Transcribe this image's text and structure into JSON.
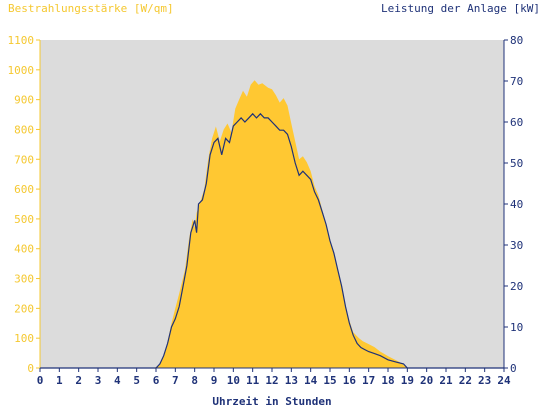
{
  "chart_data": {
    "type": "area",
    "title_left": "Bestrahlungsstärke [W/qm]",
    "title_right": "Leistung der Anlage [kW]",
    "xlabel": "Uhrzeit in Stunden",
    "x_ticks": [
      "0",
      "1",
      "2",
      "3",
      "4",
      "5",
      "6",
      "7",
      "8",
      "9",
      "10",
      "11",
      "12",
      "13",
      "14",
      "15",
      "16",
      "17",
      "18",
      "19",
      "20",
      "21",
      "22",
      "23",
      "24"
    ],
    "y_left_ticks": [
      "0",
      "100",
      "200",
      "300",
      "400",
      "500",
      "600",
      "700",
      "800",
      "900",
      "1000",
      "1100"
    ],
    "y_right_ticks": [
      "0",
      "10",
      "20",
      "30",
      "40",
      "50",
      "60",
      "70",
      "80"
    ],
    "xlim": [
      0,
      24
    ],
    "ylim_left": [
      0,
      1100
    ],
    "ylim_right": [
      0,
      80
    ],
    "grid": false,
    "colors": {
      "plot_background": "#dcdcdc",
      "irradiance_fill": "#ffc832",
      "power_line": "#1f3278",
      "left_axis": "#f5c830",
      "right_axis": "#1f3278"
    },
    "series": [
      {
        "name": "Bestrahlungsstärke [W/qm]",
        "axis": "left",
        "style": "area",
        "points": [
          [
            0,
            0
          ],
          [
            5.9,
            0
          ],
          [
            6.2,
            10
          ],
          [
            6.5,
            60
          ],
          [
            6.8,
            150
          ],
          [
            7.0,
            200
          ],
          [
            7.2,
            250
          ],
          [
            7.5,
            330
          ],
          [
            7.7,
            430
          ],
          [
            7.9,
            500
          ],
          [
            8.0,
            470
          ],
          [
            8.1,
            520
          ],
          [
            8.3,
            560
          ],
          [
            8.5,
            600
          ],
          [
            8.7,
            700
          ],
          [
            8.9,
            770
          ],
          [
            9.1,
            810
          ],
          [
            9.3,
            760
          ],
          [
            9.5,
            800
          ],
          [
            9.7,
            820
          ],
          [
            9.9,
            790
          ],
          [
            10.1,
            870
          ],
          [
            10.3,
            900
          ],
          [
            10.5,
            930
          ],
          [
            10.7,
            910
          ],
          [
            10.9,
            950
          ],
          [
            11.1,
            965
          ],
          [
            11.3,
            950
          ],
          [
            11.5,
            955
          ],
          [
            11.8,
            940
          ],
          [
            12.0,
            935
          ],
          [
            12.2,
            915
          ],
          [
            12.4,
            890
          ],
          [
            12.6,
            905
          ],
          [
            12.8,
            880
          ],
          [
            13.0,
            820
          ],
          [
            13.2,
            760
          ],
          [
            13.4,
            700
          ],
          [
            13.6,
            710
          ],
          [
            13.8,
            690
          ],
          [
            14.0,
            660
          ],
          [
            14.2,
            610
          ],
          [
            14.4,
            580
          ],
          [
            14.6,
            530
          ],
          [
            14.8,
            480
          ],
          [
            15.0,
            430
          ],
          [
            15.2,
            380
          ],
          [
            15.4,
            330
          ],
          [
            15.6,
            280
          ],
          [
            15.8,
            210
          ],
          [
            16.0,
            160
          ],
          [
            16.2,
            120
          ],
          [
            16.5,
            100
          ],
          [
            16.7,
            90
          ],
          [
            17.0,
            80
          ],
          [
            17.3,
            70
          ],
          [
            17.6,
            55
          ],
          [
            18.0,
            40
          ],
          [
            18.3,
            30
          ],
          [
            18.6,
            20
          ],
          [
            19.0,
            0
          ],
          [
            24,
            0
          ]
        ]
      },
      {
        "name": "Leistung der Anlage [kW]",
        "axis": "right",
        "style": "line",
        "points": [
          [
            0,
            0
          ],
          [
            6.0,
            0
          ],
          [
            6.2,
            1
          ],
          [
            6.4,
            3
          ],
          [
            6.6,
            6
          ],
          [
            6.8,
            10
          ],
          [
            7.0,
            12
          ],
          [
            7.2,
            15
          ],
          [
            7.4,
            20
          ],
          [
            7.6,
            25
          ],
          [
            7.8,
            33
          ],
          [
            8.0,
            36
          ],
          [
            8.1,
            33
          ],
          [
            8.2,
            40
          ],
          [
            8.4,
            41
          ],
          [
            8.6,
            45
          ],
          [
            8.8,
            52
          ],
          [
            9.0,
            55
          ],
          [
            9.2,
            56
          ],
          [
            9.4,
            52
          ],
          [
            9.6,
            56
          ],
          [
            9.8,
            55
          ],
          [
            10.0,
            59
          ],
          [
            10.2,
            60
          ],
          [
            10.4,
            61
          ],
          [
            10.6,
            60
          ],
          [
            10.8,
            61
          ],
          [
            11.0,
            62
          ],
          [
            11.2,
            61
          ],
          [
            11.4,
            62
          ],
          [
            11.6,
            61
          ],
          [
            11.8,
            61
          ],
          [
            12.0,
            60
          ],
          [
            12.2,
            59
          ],
          [
            12.4,
            58
          ],
          [
            12.6,
            58
          ],
          [
            12.8,
            57
          ],
          [
            13.0,
            54
          ],
          [
            13.2,
            50
          ],
          [
            13.4,
            47
          ],
          [
            13.6,
            48
          ],
          [
            13.8,
            47
          ],
          [
            14.0,
            46
          ],
          [
            14.2,
            43
          ],
          [
            14.4,
            41
          ],
          [
            14.6,
            38
          ],
          [
            14.8,
            35
          ],
          [
            15.0,
            31
          ],
          [
            15.2,
            28
          ],
          [
            15.4,
            24
          ],
          [
            15.6,
            20
          ],
          [
            15.8,
            15
          ],
          [
            16.0,
            11
          ],
          [
            16.2,
            8
          ],
          [
            16.4,
            6
          ],
          [
            16.6,
            5
          ],
          [
            16.8,
            4.5
          ],
          [
            17.0,
            4
          ],
          [
            17.3,
            3.5
          ],
          [
            17.6,
            3
          ],
          [
            18.0,
            2
          ],
          [
            18.4,
            1.5
          ],
          [
            18.8,
            1
          ],
          [
            19.0,
            0
          ],
          [
            24,
            0
          ]
        ]
      }
    ]
  }
}
